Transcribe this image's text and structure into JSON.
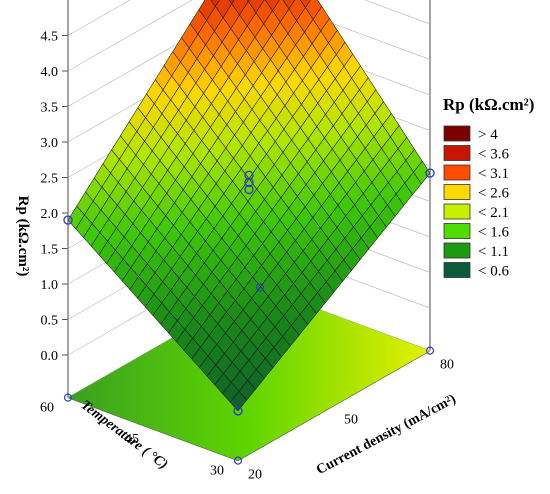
{
  "chart_data": {
    "type": "surface3d",
    "title": "",
    "zlabel": "Rp (kΩ.cm²)",
    "xlabel": "Current density (mA/cm²)",
    "ylabel": "Temperature ( °C)",
    "z_ticks": [
      "0.0",
      "0.5",
      "1.0",
      "1.5",
      "2.0",
      "2.5",
      "3.0",
      "3.5",
      "4.0",
      "4.5"
    ],
    "x_ticks": [
      "20",
      "50",
      "80"
    ],
    "y_ticks": [
      "30",
      "45",
      "60"
    ],
    "zlim": [
      0,
      4.5
    ],
    "xlim": [
      20,
      80
    ],
    "ylim": [
      30,
      60
    ],
    "surface_corners": [
      {
        "current_density": 20,
        "temperature": 30,
        "rp": 0.1
      },
      {
        "current_density": 80,
        "temperature": 30,
        "rp": 1.9
      },
      {
        "current_density": 20,
        "temperature": 60,
        "rp": 1.9
      },
      {
        "current_density": 80,
        "temperature": 60,
        "rp": 4.7
      }
    ],
    "design_points": [
      {
        "current_density": 20,
        "temperature": 30,
        "rp": 0.1
      },
      {
        "current_density": 80,
        "temperature": 30,
        "rp": 1.9
      },
      {
        "current_density": 20,
        "temperature": 60,
        "rp": 1.9
      },
      {
        "current_density": 80,
        "temperature": 60,
        "rp": 4.7
      },
      {
        "current_density": 50,
        "temperature": 45,
        "rp": 2.2
      },
      {
        "current_density": 50,
        "temperature": 45,
        "rp": 2.1
      },
      {
        "current_density": 50,
        "temperature": 45,
        "rp": 2.0
      }
    ],
    "legend": {
      "title": "Rp (kΩ.cm²)",
      "position": "right",
      "entries": [
        {
          "label": "> 4",
          "color": "#7a0000"
        },
        {
          "label": "< 3.6",
          "color": "#c81400"
        },
        {
          "label": "< 3.1",
          "color": "#ff4d00"
        },
        {
          "label": "< 2.6",
          "color": "#ffd700"
        },
        {
          "label": "< 2.1",
          "color": "#c5f000"
        },
        {
          "label": "< 1.6",
          "color": "#4fdd00"
        },
        {
          "label": "< 1.1",
          "color": "#1d9a12"
        },
        {
          "label": "< 0.6",
          "color": "#0c5a3c"
        }
      ]
    },
    "grid": true
  }
}
